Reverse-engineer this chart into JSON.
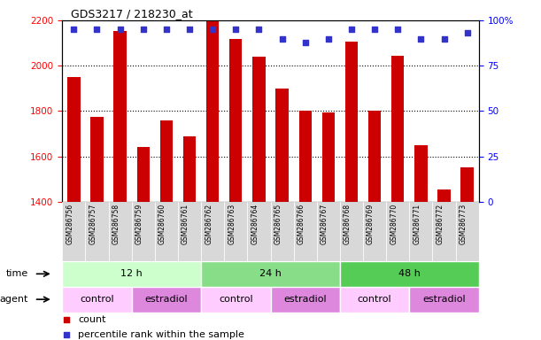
{
  "title": "GDS3217 / 218230_at",
  "samples": [
    "GSM286756",
    "GSM286757",
    "GSM286758",
    "GSM286759",
    "GSM286760",
    "GSM286761",
    "GSM286762",
    "GSM286763",
    "GSM286764",
    "GSM286765",
    "GSM286766",
    "GSM286767",
    "GSM286768",
    "GSM286769",
    "GSM286770",
    "GSM286771",
    "GSM286772",
    "GSM286773"
  ],
  "counts": [
    1950,
    1775,
    2155,
    1640,
    1760,
    1690,
    2195,
    2120,
    2040,
    1900,
    1800,
    1795,
    2105,
    1800,
    2045,
    1650,
    1455,
    1550
  ],
  "percentile_ranks": [
    95,
    95,
    95,
    95,
    95,
    95,
    95,
    95,
    95,
    90,
    88,
    90,
    95,
    95,
    95,
    90,
    90,
    93
  ],
  "ylim_left": [
    1400,
    2200
  ],
  "ylim_right": [
    0,
    100
  ],
  "yticks_left": [
    1400,
    1600,
    1800,
    2000,
    2200
  ],
  "yticks_right": [
    0,
    25,
    50,
    75,
    100
  ],
  "bar_color": "#cc0000",
  "dot_color": "#3333cc",
  "time_groups": [
    {
      "label": "12 h",
      "start": 0,
      "end": 6,
      "color": "#ccffcc"
    },
    {
      "label": "24 h",
      "start": 6,
      "end": 12,
      "color": "#88dd88"
    },
    {
      "label": "48 h",
      "start": 12,
      "end": 18,
      "color": "#55cc55"
    }
  ],
  "agent_groups": [
    {
      "label": "control",
      "start": 0,
      "end": 3,
      "color": "#ffccff"
    },
    {
      "label": "estradiol",
      "start": 3,
      "end": 6,
      "color": "#dd88dd"
    },
    {
      "label": "control",
      "start": 6,
      "end": 9,
      "color": "#ffccff"
    },
    {
      "label": "estradiol",
      "start": 9,
      "end": 12,
      "color": "#dd88dd"
    },
    {
      "label": "control",
      "start": 12,
      "end": 15,
      "color": "#ffccff"
    },
    {
      "label": "estradiol",
      "start": 15,
      "end": 18,
      "color": "#dd88dd"
    }
  ],
  "legend_count_label": "count",
  "legend_pct_label": "percentile rank within the sample",
  "time_label": "time",
  "agent_label": "agent",
  "background_color": "#ffffff",
  "xlabel_bg": "#d8d8d8"
}
